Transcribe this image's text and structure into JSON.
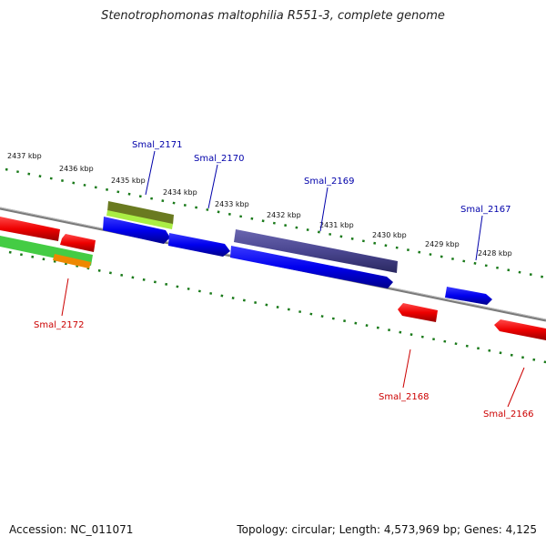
{
  "title": "Stenotrophomonas maltophilia R551-3, complete genome",
  "footer": {
    "accession": "Accession: NC_011071",
    "summary": "Topology: circular; Length: 4,573,969 bp; Genes: 4,125"
  },
  "kbp_labels": [
    "2437 kbp",
    "2436 kbp",
    "2435 kbp",
    "2434 kbp",
    "2433 kbp",
    "2432 kbp",
    "2431 kbp",
    "2430 kbp",
    "2429 kbp",
    "2428 kbp"
  ],
  "genes_top": [
    "Smal_2171",
    "Smal_2170",
    "Smal_2169",
    "Smal_2167"
  ],
  "genes_bottom": [
    "Smal_2172",
    "Smal_2168",
    "Smal_2166"
  ],
  "colors": {
    "forward_cds": "#0000ee",
    "reverse_cds": "#ee0000",
    "top_label": "#0000aa",
    "bottom_label": "#cc0000",
    "tick": "#1a7a1a",
    "backbone": "#7a7a7a",
    "feature_purple": "#4a4690",
    "feature_olive": "#6a7a20",
    "feature_lime": "#aaee44",
    "feature_green": "#44cc44",
    "feature_orange": "#ee8800"
  }
}
